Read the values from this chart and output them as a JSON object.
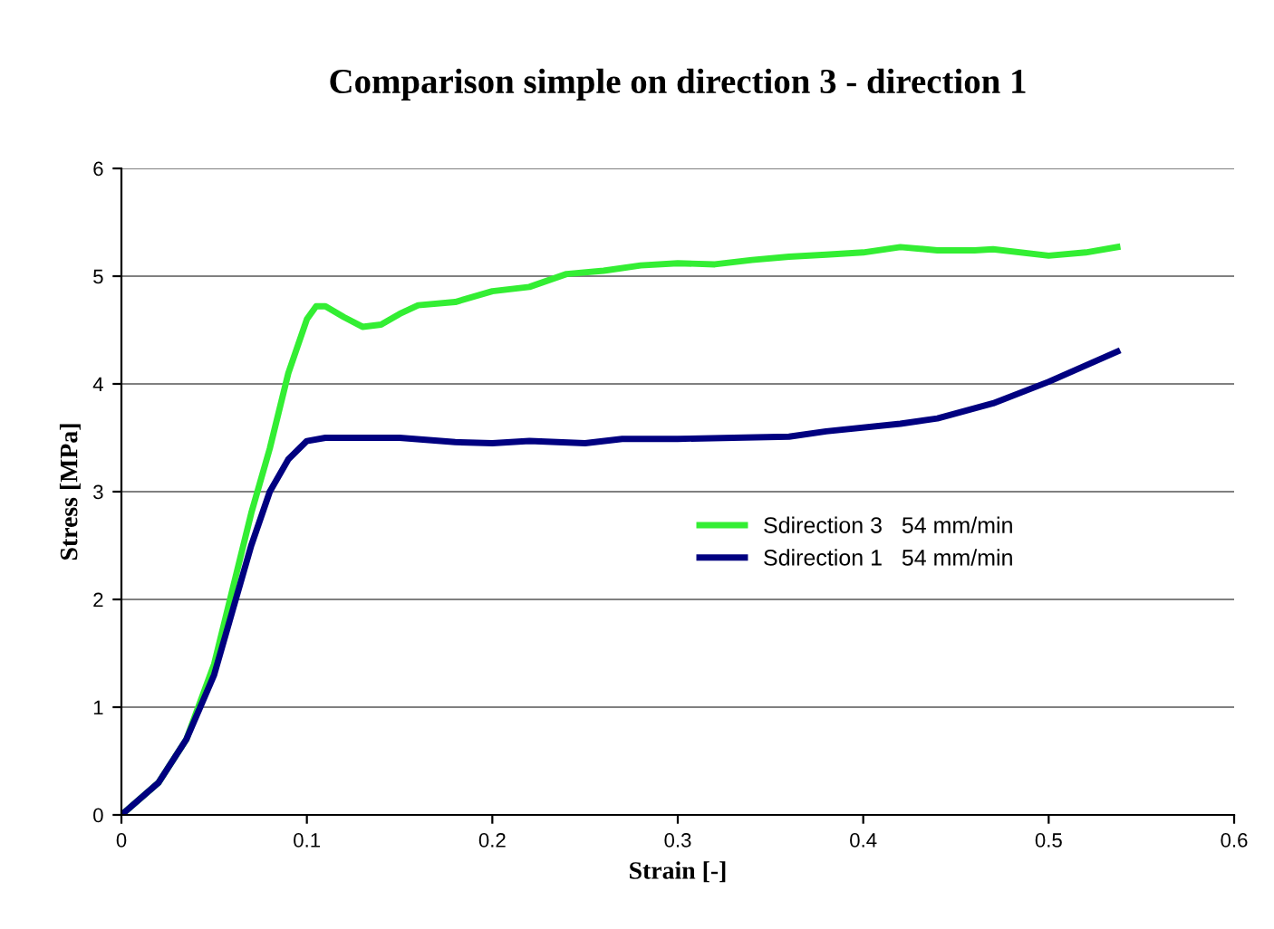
{
  "chart_data": {
    "type": "line",
    "title": "Comparison simple on direction 3 - direction 1",
    "xlabel": "Strain [-]",
    "ylabel": "Stress [MPa]",
    "xlim": [
      0,
      0.6
    ],
    "xticks": [
      0,
      0.1,
      0.2,
      0.3,
      0.4,
      0.5,
      0.6
    ],
    "ylim": [
      0,
      6
    ],
    "yticks": [
      0,
      1,
      2,
      3,
      4,
      5,
      6
    ],
    "grid": "y",
    "legend": "right",
    "marker": "none",
    "line_style": "solid",
    "series": [
      {
        "name": "Sdirection 3   54 mm/min",
        "color": "#33ee33",
        "x": [
          0,
          0.02,
          0.035,
          0.05,
          0.06,
          0.07,
          0.08,
          0.09,
          0.1,
          0.105,
          0.11,
          0.12,
          0.13,
          0.14,
          0.15,
          0.16,
          0.18,
          0.2,
          0.22,
          0.24,
          0.26,
          0.28,
          0.3,
          0.32,
          0.34,
          0.36,
          0.38,
          0.4,
          0.42,
          0.44,
          0.46,
          0.47,
          0.5,
          0.52,
          0.537
        ],
        "values": [
          0,
          0.3,
          0.7,
          1.4,
          2.1,
          2.8,
          3.4,
          4.1,
          4.6,
          4.72,
          4.72,
          4.62,
          4.53,
          4.55,
          4.65,
          4.73,
          4.76,
          4.86,
          4.9,
          5.02,
          5.05,
          5.1,
          5.12,
          5.11,
          5.15,
          5.18,
          5.2,
          5.22,
          5.27,
          5.24,
          5.24,
          5.25,
          5.19,
          5.22,
          5.27
        ]
      },
      {
        "name": "Sdirection 1   54 mm/min",
        "color": "#000080",
        "x": [
          0,
          0.02,
          0.035,
          0.05,
          0.06,
          0.07,
          0.08,
          0.09,
          0.1,
          0.11,
          0.15,
          0.18,
          0.2,
          0.22,
          0.25,
          0.27,
          0.3,
          0.33,
          0.36,
          0.38,
          0.42,
          0.44,
          0.47,
          0.5,
          0.537
        ],
        "values": [
          0,
          0.3,
          0.7,
          1.3,
          1.9,
          2.5,
          3.0,
          3.3,
          3.47,
          3.5,
          3.5,
          3.46,
          3.45,
          3.47,
          3.45,
          3.49,
          3.49,
          3.5,
          3.51,
          3.56,
          3.63,
          3.68,
          3.82,
          4.02,
          4.3
        ]
      }
    ]
  }
}
